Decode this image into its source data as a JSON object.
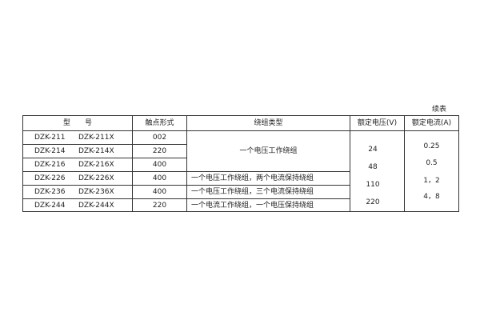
{
  "caption": "续表",
  "headers": [
    "型　　号",
    "触点形式",
    "绕组类型",
    "额定电压(V)",
    "额定电流(A)"
  ],
  "rows": [
    {
      "model": "DZK-211",
      "model_x": "DZK-211X",
      "contact": "002"
    },
    {
      "model": "DZK-214",
      "model_x": "DZK-214X",
      "contact": "220"
    },
    {
      "model": "DZK-216",
      "model_x": "DZK-216X",
      "contact": "400"
    },
    {
      "model": "DZK-226",
      "model_x": "DZK-226X",
      "contact": "400"
    },
    {
      "model": "DZK-236",
      "model_x": "DZK-236X",
      "contact": "400"
    },
    {
      "model": "DZK-244",
      "model_x": "DZK-244X",
      "contact": "220"
    }
  ],
  "winding_types": [
    "一个电压工作绕组",
    "一个电压工作绕组，两个电流保持绕组",
    "一个电压工作绕组，三个电流保持绕组",
    "一个电流工作绕组，一个电压保持绕组"
  ],
  "voltages": [
    "24",
    "48",
    "110",
    "220"
  ],
  "currents": [
    "0.25",
    "0.5",
    "1，2",
    "4，8"
  ]
}
